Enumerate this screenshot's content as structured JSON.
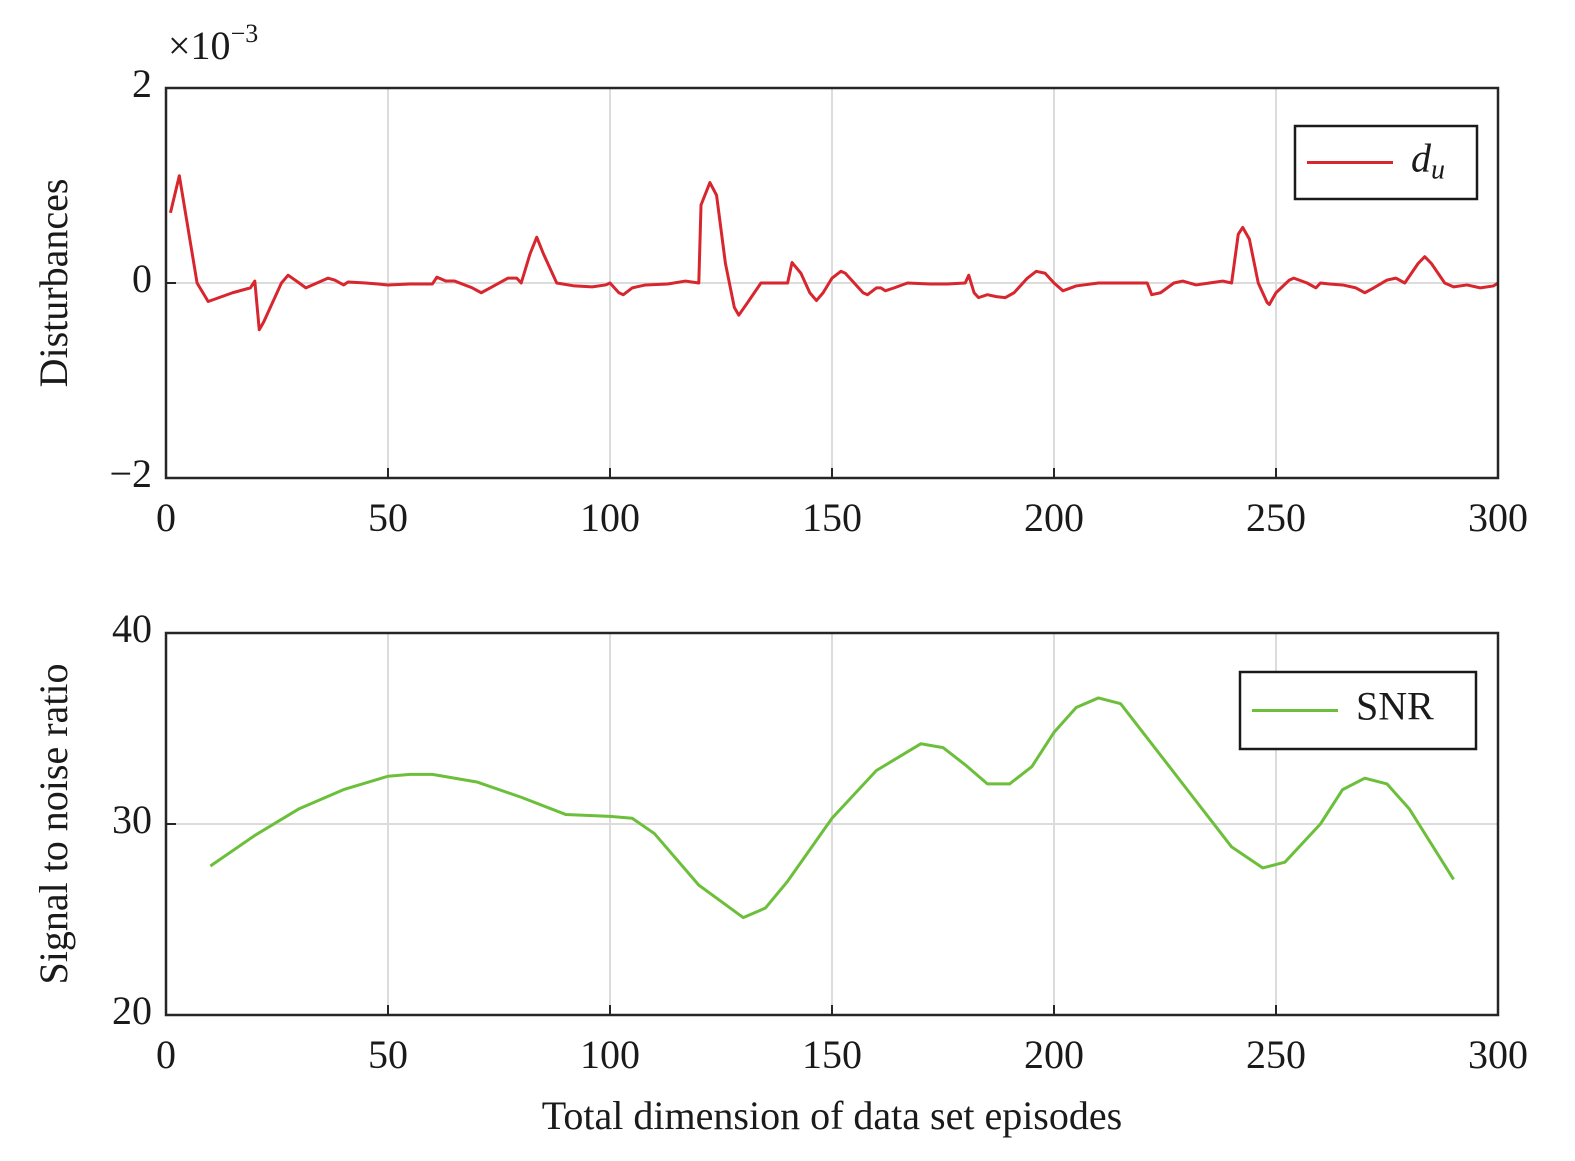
{
  "chart_data": [
    {
      "type": "line",
      "ylabel": "Disturbances",
      "y_multiplier": {
        "base": "×10",
        "exponent": "−3"
      },
      "xlim": [
        0,
        300
      ],
      "xticks": [
        0,
        50,
        100,
        150,
        200,
        250,
        300
      ],
      "ylim": [
        -2,
        2
      ],
      "yticks": [
        {
          "value": -2,
          "label": "−2"
        },
        0,
        2
      ],
      "grid": true,
      "legend": "upper right",
      "x": [
        1,
        3,
        7,
        9.5,
        15,
        19,
        20,
        21,
        22,
        26,
        27.5,
        30,
        31.5,
        34,
        36.5,
        38,
        40,
        41,
        45,
        50,
        55,
        60,
        61,
        63,
        65,
        69,
        71,
        73,
        77,
        79,
        80,
        82,
        83.5,
        85,
        88,
        92,
        96,
        99,
        100,
        102,
        103,
        105,
        108,
        113,
        117,
        120,
        120.5,
        122.5,
        124,
        126,
        128,
        129,
        131,
        134,
        137,
        140,
        141,
        143,
        145,
        146.5,
        148,
        150,
        152,
        153,
        155,
        157,
        158,
        160,
        161,
        162,
        164,
        167,
        172,
        176,
        180,
        180.8,
        182,
        183,
        185,
        187,
        189,
        191,
        194,
        196,
        198,
        200,
        202,
        205,
        210,
        215,
        221,
        222,
        224,
        227,
        229,
        232,
        235,
        238,
        240,
        241.5,
        242.5,
        244,
        246,
        248,
        248.5,
        250,
        253,
        254,
        257,
        259,
        260,
        262,
        265,
        268,
        270,
        272,
        275,
        277,
        279,
        282,
        283.5,
        285,
        288,
        290,
        293,
        296,
        299,
        300
      ],
      "series": [
        {
          "name": "d",
          "name_subscript": "u",
          "color": "#d7262e",
          "values": [
            0.72,
            1.1,
            0,
            -0.19,
            -0.1,
            -0.05,
            0.02,
            -0.48,
            -0.4,
            0,
            0.08,
            0,
            -0.05,
            0,
            0.05,
            0.03,
            -0.02,
            0.01,
            0,
            -0.02,
            -0.01,
            -0.01,
            0.06,
            0.02,
            0.02,
            -0.05,
            -0.1,
            -0.05,
            0.05,
            0.05,
            0,
            0.3,
            0.47,
            0.3,
            0,
            -0.03,
            -0.04,
            -0.02,
            0,
            -0.1,
            -0.12,
            -0.05,
            -0.02,
            -0.01,
            0.02,
            0,
            0.8,
            1.03,
            0.9,
            0.2,
            -0.25,
            -0.33,
            -0.2,
            0,
            0,
            0,
            0.21,
            0.1,
            -0.1,
            -0.18,
            -0.1,
            0.05,
            0.12,
            0.1,
            0,
            -0.1,
            -0.12,
            -0.05,
            -0.05,
            -0.08,
            -0.05,
            0,
            -0.01,
            -0.01,
            0,
            0.08,
            -0.1,
            -0.15,
            -0.12,
            -0.14,
            -0.15,
            -0.1,
            0.05,
            0.12,
            0.1,
            0,
            -0.08,
            -0.03,
            0,
            0,
            0,
            -0.12,
            -0.1,
            0,
            0.02,
            -0.02,
            0,
            0.02,
            0,
            0.5,
            0.57,
            0.45,
            0,
            -0.2,
            -0.22,
            -0.1,
            0.03,
            0.05,
            0,
            -0.05,
            0,
            -0.01,
            -0.02,
            -0.05,
            -0.1,
            -0.05,
            0.03,
            0.05,
            0,
            0.2,
            0.27,
            0.2,
            0,
            -0.04,
            -0.02,
            -0.05,
            -0.03,
            0
          ]
        }
      ]
    },
    {
      "type": "line",
      "ylabel": "Signal to noise ratio",
      "xlabel": "Total dimension of data set episodes",
      "xlim": [
        0,
        300
      ],
      "xticks": [
        0,
        50,
        100,
        150,
        200,
        250,
        300
      ],
      "ylim": [
        20,
        40
      ],
      "yticks": [
        20,
        30,
        40
      ],
      "grid": true,
      "legend": "upper right",
      "x": [
        10,
        20,
        30,
        40,
        50,
        55,
        60,
        70,
        80,
        90,
        100,
        105,
        110,
        120,
        130,
        135,
        140,
        150,
        160,
        170,
        175,
        180,
        185,
        190,
        195,
        200,
        205,
        210,
        215,
        220,
        230,
        240,
        247,
        252,
        260,
        265,
        270,
        275,
        280,
        290
      ],
      "series": [
        {
          "name": "SNR",
          "color": "#6cbf3a",
          "values": [
            27.8,
            29.4,
            30.8,
            31.8,
            32.5,
            32.6,
            32.6,
            32.2,
            31.4,
            30.5,
            30.4,
            30.3,
            29.5,
            26.8,
            25.1,
            25.6,
            27.0,
            30.3,
            32.8,
            34.2,
            34.0,
            33.1,
            32.1,
            32.1,
            33.0,
            34.8,
            36.1,
            36.6,
            36.3,
            34.8,
            31.8,
            28.8,
            27.7,
            28.0,
            30.0,
            31.8,
            32.4,
            32.1,
            30.8,
            27.1
          ]
        }
      ]
    }
  ]
}
